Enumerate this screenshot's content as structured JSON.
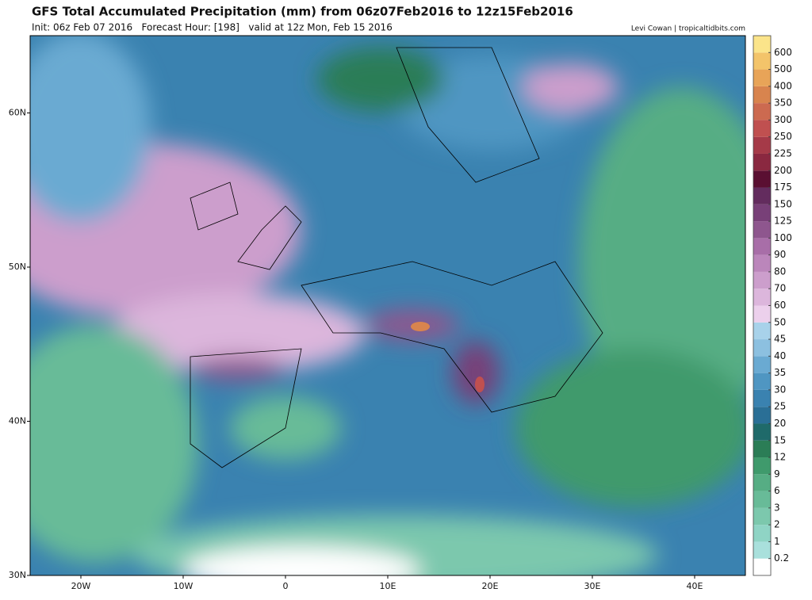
{
  "header": {
    "title": "GFS Total Accumulated Precipitation (mm) from 06z07Feb2016 to 12z15Feb2016",
    "subtitle": "Init: 06z Feb 07 2016   Forecast Hour: [198]   valid at 12z Mon, Feb 15 2016",
    "credit": "Levi Cowan | tropicaltidbits.com"
  },
  "map": {
    "lat_ticks": [
      {
        "value": 60,
        "label": "60N"
      },
      {
        "value": 50,
        "label": "50N"
      },
      {
        "value": 40,
        "label": "40N"
      },
      {
        "value": 30,
        "label": "30N"
      }
    ],
    "lon_ticks": [
      {
        "value": -20,
        "label": "20W"
      },
      {
        "value": -10,
        "label": "10W"
      },
      {
        "value": 0,
        "label": "0"
      },
      {
        "value": 10,
        "label": "10E"
      },
      {
        "value": 20,
        "label": "20E"
      },
      {
        "value": 30,
        "label": "30E"
      },
      {
        "value": 40,
        "label": "40E"
      }
    ]
  },
  "colorbar": {
    "levels": [
      0.2,
      1,
      2,
      3,
      6,
      9,
      12,
      15,
      20,
      25,
      30,
      35,
      40,
      45,
      50,
      60,
      70,
      80,
      90,
      100,
      125,
      150,
      175,
      200,
      225,
      250,
      300,
      350,
      400,
      500,
      600
    ],
    "colors": [
      "#ffffff",
      "#a9e0dc",
      "#8fd4c5",
      "#7cc8ad",
      "#68bb98",
      "#56ad84",
      "#3f9a6c",
      "#2b7d56",
      "#1f6a6a",
      "#2a6f96",
      "#3a82b0",
      "#4f96c2",
      "#6aaad2",
      "#8cc0e0",
      "#a8d2ea",
      "#ecd0ec",
      "#dcb6dc",
      "#cc9ecc",
      "#bb86bb",
      "#a86ea8",
      "#8e568e",
      "#784078",
      "#632c5e",
      "#5a0f32",
      "#8a2840",
      "#a53a48",
      "#c05050",
      "#cc6a50",
      "#d8844e",
      "#e8a458",
      "#f3c46a",
      "#fbe48a"
    ]
  }
}
